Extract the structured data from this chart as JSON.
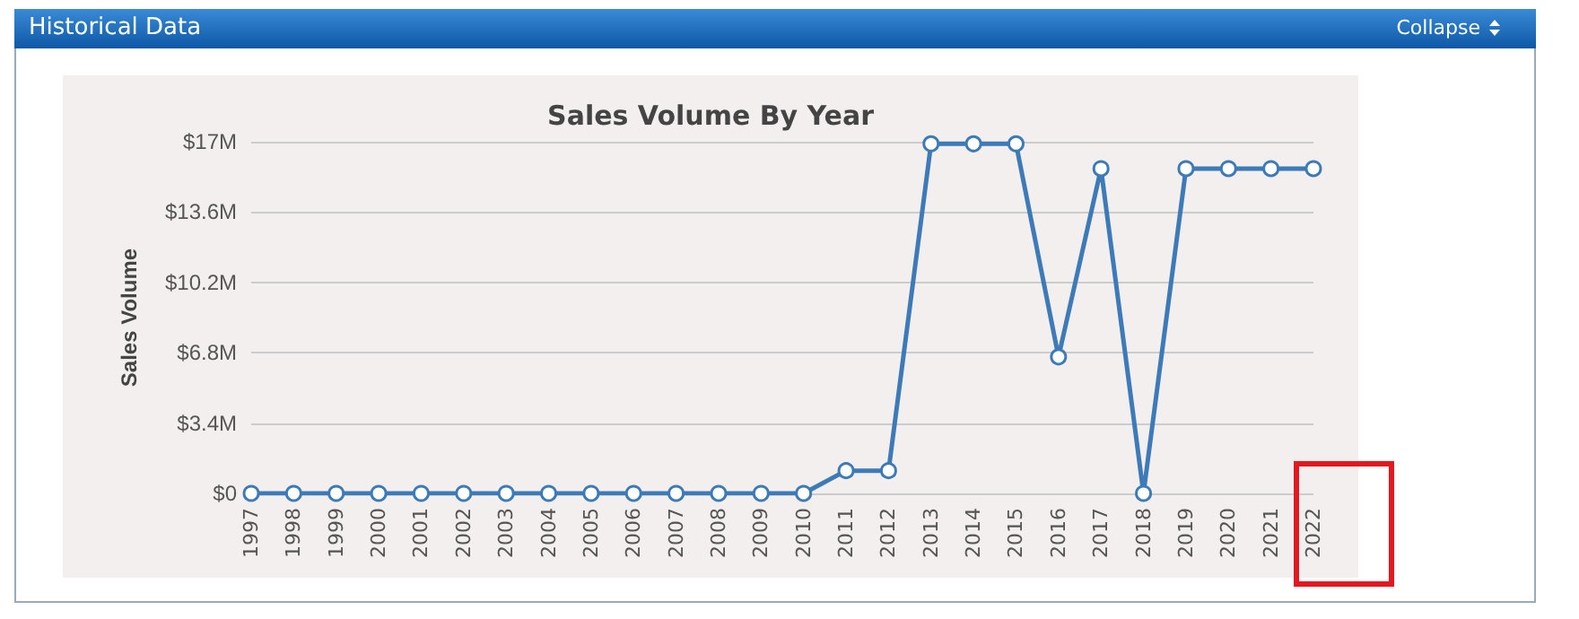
{
  "chart_data": {
    "type": "line",
    "title": "Sales Volume By Year",
    "ylabel": "Sales Volume",
    "annotations": [
      "Historical Data",
      "Collapse"
    ],
    "categories": [
      "1997",
      "1998",
      "1999",
      "2000",
      "2001",
      "2002",
      "2003",
      "2004",
      "2005",
      "2006",
      "2007",
      "2008",
      "2009",
      "2010",
      "2011",
      "2012",
      "2013",
      "2014",
      "2015",
      "2016",
      "2017",
      "2018",
      "2019",
      "2020",
      "2021",
      "2022"
    ],
    "series": [
      {
        "color": "#3d7ab8",
        "values": [
          0,
          0,
          0,
          0,
          0,
          0,
          0,
          0,
          0,
          0,
          0,
          0,
          0,
          0,
          1.1,
          1.1,
          16.9,
          16.9,
          16.9,
          6.6,
          15.7,
          0,
          15.7,
          15.7,
          15.7,
          15.7
        ]
      }
    ],
    "ylim": [
      0,
      17
    ],
    "yticks": [
      {
        "value": 0,
        "label": "$0"
      },
      {
        "value": 3.4,
        "label": "$3.4M"
      },
      {
        "value": 6.8,
        "label": "$6.8M"
      },
      {
        "value": 10.2,
        "label": "$10.2M"
      },
      {
        "value": 13.6,
        "label": "$13.6M"
      },
      {
        "value": 17,
        "label": "$17M"
      }
    ],
    "grid": "y",
    "marker": "circle",
    "line_style": "solid"
  }
}
